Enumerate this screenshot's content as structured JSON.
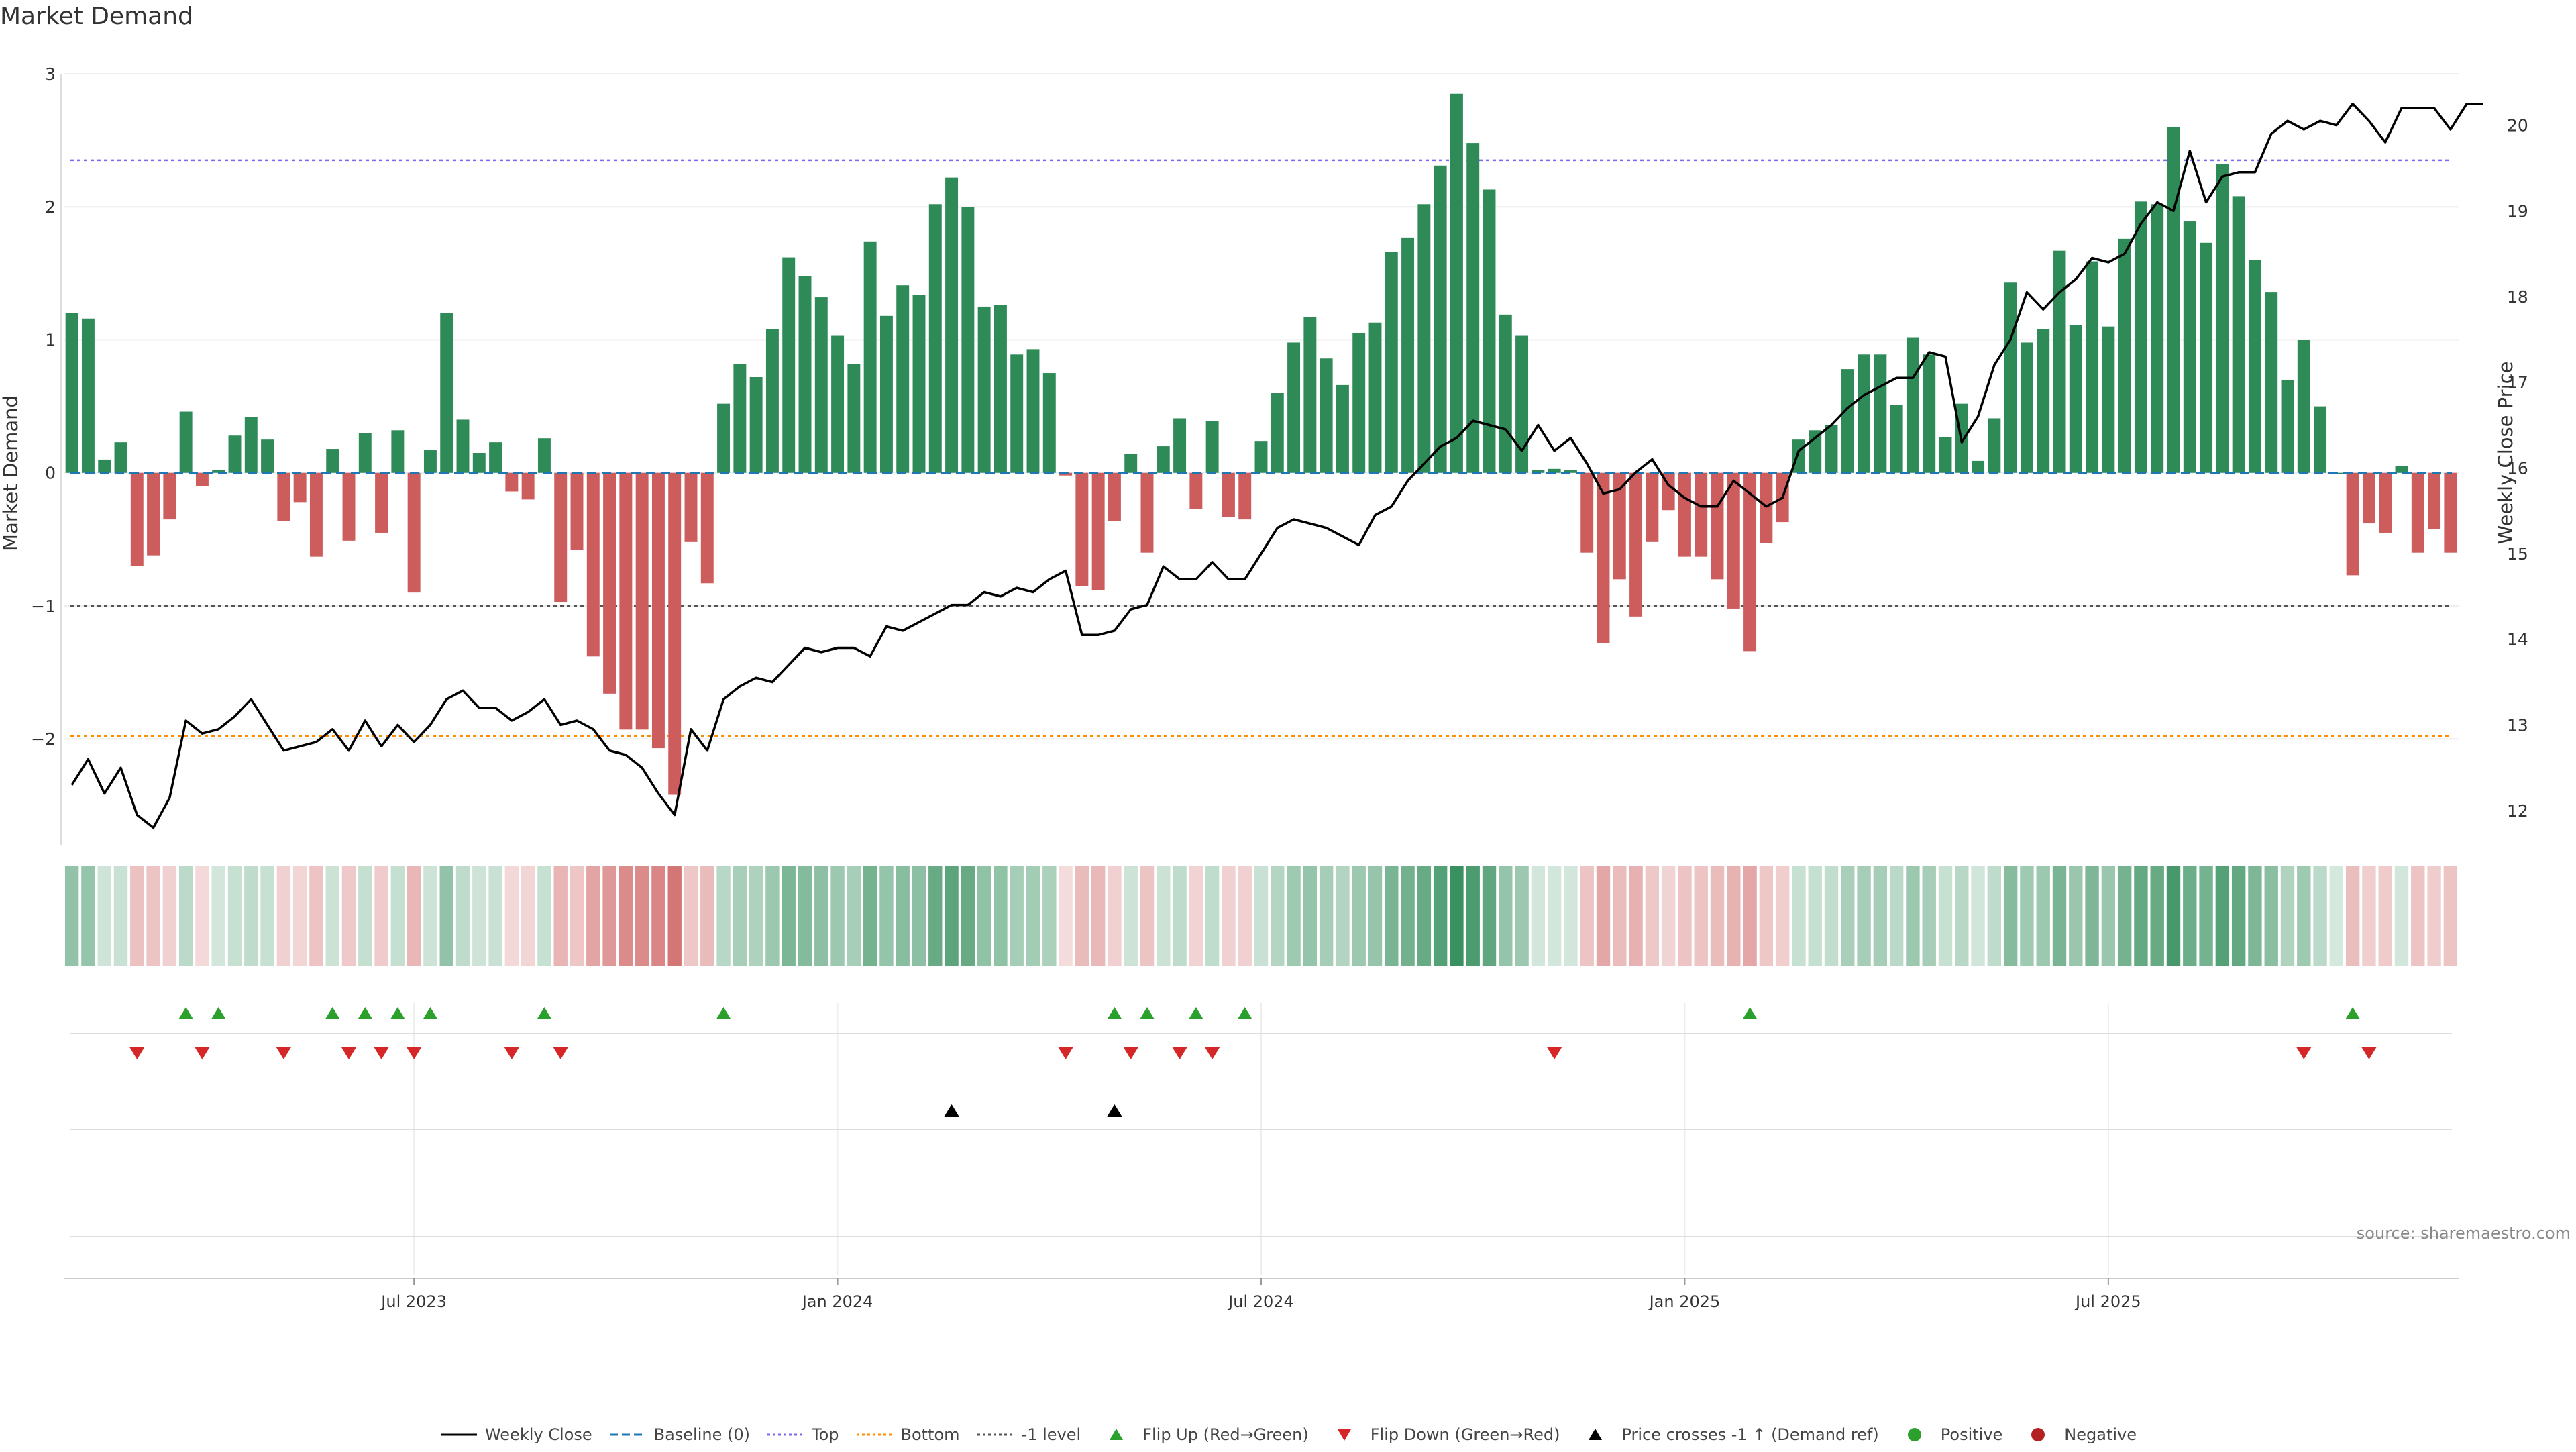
{
  "title": "Market Demand",
  "source": "source: sharemaestro.com",
  "colors": {
    "positive_bar": "#2e8b57",
    "negative_bar": "#cd5c5c",
    "price_line": "#000000",
    "baseline": "#1f77b4",
    "top": "#7b68ee",
    "bottom": "#ff8c00",
    "minus1": "#555555",
    "flip_up": "#2ca02c",
    "flip_down": "#d62728",
    "cross": "#000000",
    "positive_dot": "#2ca02c",
    "negative_dot": "#b22222"
  },
  "chart_data": {
    "type": "bar",
    "title": "Market Demand",
    "ylabel": "Market Demand",
    "y2label": "Weekly Close Price",
    "ylim": [
      -2.7,
      3.0
    ],
    "y2lim": [
      11.75,
      20.6
    ],
    "yticks": [
      -2,
      -1,
      0,
      1,
      2,
      3
    ],
    "y2ticks": [
      12,
      13,
      14,
      15,
      16,
      17,
      18,
      19,
      20
    ],
    "xticks": [
      "Jul 2023",
      "Jan 2024",
      "Jul 2024",
      "Jan 2025",
      "Jul 2025"
    ],
    "xtick_positions": [
      21,
      47,
      73,
      99,
      125
    ],
    "levels": {
      "top": 2.35,
      "bottom": -1.98,
      "minus_one": -1.0,
      "baseline": 0
    },
    "demand": [
      1.2,
      1.16,
      0.1,
      0.23,
      -0.7,
      -0.62,
      -0.35,
      0.46,
      -0.1,
      0.02,
      0.28,
      0.42,
      0.25,
      -0.36,
      -0.22,
      -0.63,
      0.18,
      -0.51,
      0.3,
      -0.45,
      0.32,
      -0.9,
      0.17,
      1.2,
      0.4,
      0.15,
      0.23,
      -0.14,
      -0.2,
      0.26,
      -0.97,
      -0.58,
      -1.38,
      -1.66,
      -1.93,
      -1.93,
      -2.07,
      -2.42,
      -0.52,
      -0.83,
      0.52,
      0.82,
      0.72,
      1.08,
      1.62,
      1.48,
      1.32,
      1.03,
      0.82,
      1.74,
      1.18,
      1.41,
      1.34,
      2.02,
      2.22,
      2.0,
      1.25,
      1.26,
      0.89,
      0.93,
      0.75,
      -0.02,
      -0.85,
      -0.88,
      -0.36,
      0.14,
      -0.6,
      0.2,
      0.41,
      -0.27,
      0.39,
      -0.33,
      -0.35,
      0.24,
      0.6,
      0.98,
      1.17,
      0.86,
      0.66,
      1.05,
      1.13,
      1.66,
      1.77,
      2.02,
      2.31,
      2.85,
      2.48,
      2.13,
      1.19,
      1.03,
      0.02,
      0.03,
      0.02,
      -0.6,
      -1.28,
      -0.8,
      -1.08,
      -0.52,
      -0.28,
      -0.63,
      -0.63,
      -0.8,
      -1.02,
      -1.34,
      -0.53,
      -0.37,
      0.25,
      0.32,
      0.36,
      0.78,
      0.89,
      0.89,
      0.51,
      1.02,
      0.89,
      0.27,
      0.52,
      0.09,
      0.41,
      1.43,
      0.98,
      1.08,
      1.67,
      1.11,
      1.59,
      1.1,
      1.76,
      2.04,
      2.02,
      2.6,
      1.89,
      1.73,
      2.32,
      2.08,
      1.6,
      1.36,
      0.7,
      1.0,
      0.5,
      0.0,
      -0.77,
      -0.38,
      -0.45,
      0.05,
      -0.6,
      -0.42,
      -0.6
    ],
    "price": [
      12.3,
      12.6,
      12.2,
      12.5,
      11.95,
      11.8,
      12.15,
      13.05,
      12.9,
      12.95,
      13.1,
      13.3,
      13.0,
      12.7,
      12.75,
      12.8,
      12.95,
      12.7,
      13.05,
      12.75,
      13.0,
      12.8,
      13.0,
      13.3,
      13.4,
      13.2,
      13.2,
      13.05,
      13.15,
      13.3,
      13.0,
      13.05,
      12.95,
      12.7,
      12.65,
      12.5,
      12.2,
      11.95,
      12.95,
      12.7,
      13.3,
      13.45,
      13.55,
      13.5,
      13.7,
      13.9,
      13.85,
      13.9,
      13.9,
      13.8,
      14.15,
      14.1,
      14.2,
      14.3,
      14.4,
      14.4,
      14.55,
      14.5,
      14.6,
      14.55,
      14.7,
      14.8,
      14.05,
      14.05,
      14.1,
      14.35,
      14.4,
      14.85,
      14.7,
      14.7,
      14.9,
      14.7,
      14.7,
      15.0,
      15.3,
      15.4,
      15.35,
      15.3,
      15.2,
      15.1,
      15.45,
      15.55,
      15.85,
      16.05,
      16.25,
      16.35,
      16.55,
      16.5,
      16.45,
      16.2,
      16.5,
      16.2,
      16.35,
      16.05,
      15.7,
      15.75,
      15.95,
      16.1,
      15.8,
      15.65,
      15.55,
      15.55,
      15.85,
      15.7,
      15.55,
      15.65,
      16.2,
      16.35,
      16.5,
      16.7,
      16.85,
      16.95,
      17.05,
      17.05,
      17.35,
      17.3,
      16.3,
      16.6,
      17.2,
      17.5,
      18.05,
      17.85,
      18.05,
      18.2,
      18.45,
      18.4,
      18.5,
      18.85,
      19.1,
      19.0,
      19.7,
      19.1,
      19.4,
      19.45,
      19.45,
      19.9,
      20.05,
      19.95,
      20.05,
      20.0,
      20.25,
      20.05,
      19.8,
      20.2,
      20.2,
      20.2,
      19.95,
      20.25,
      20.25
    ],
    "flip_up_indices": [
      7,
      9,
      16,
      18,
      20,
      22,
      29,
      40,
      64,
      66,
      69,
      72,
      103,
      140
    ],
    "flip_down_indices": [
      4,
      8,
      13,
      17,
      19,
      21,
      27,
      30,
      61,
      65,
      68,
      70,
      91,
      137,
      141
    ],
    "cross_indices": [
      54,
      64
    ]
  },
  "legend": [
    {
      "label": "Weekly Close",
      "kind": "line",
      "color": "#000000"
    },
    {
      "label": "Baseline (0)",
      "kind": "dash",
      "color": "#1f77b4"
    },
    {
      "label": "Top",
      "kind": "dot",
      "color": "#7b68ee"
    },
    {
      "label": "Bottom",
      "kind": "dot",
      "color": "#ff8c00"
    },
    {
      "label": "-1 level",
      "kind": "dot",
      "color": "#555555"
    },
    {
      "label": "Flip Up (Red→Green)",
      "kind": "tri-up",
      "color": "#2ca02c"
    },
    {
      "label": "Flip Down (Green→Red)",
      "kind": "tri-down",
      "color": "#d62728"
    },
    {
      "label": "Price crosses -1 ↑ (Demand ref)",
      "kind": "tri-up",
      "color": "#000000"
    },
    {
      "label": "Positive",
      "kind": "circle",
      "color": "#2ca02c"
    },
    {
      "label": "Negative",
      "kind": "circle",
      "color": "#b22222"
    }
  ]
}
